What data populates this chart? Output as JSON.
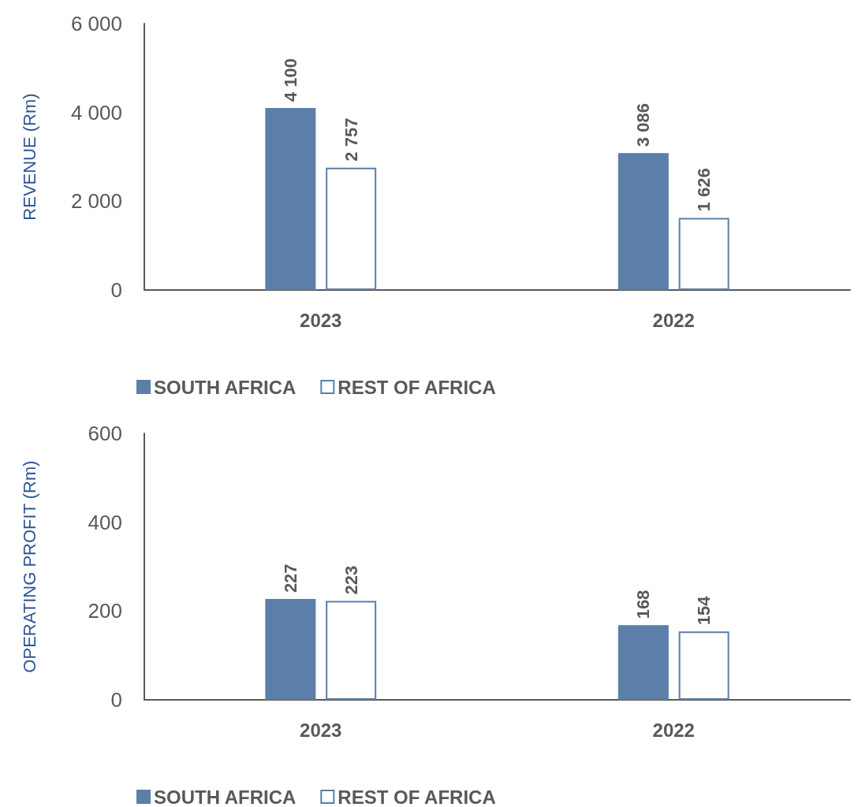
{
  "chart_data": [
    {
      "type": "bar",
      "ylabel": "REVENUE (Rm)",
      "categories": [
        "2023",
        "2022"
      ],
      "ylim": [
        0,
        6000
      ],
      "yticks": [
        0,
        {
          "value": 2000,
          "label": "2 000"
        },
        {
          "value": 4000,
          "label": "4 000"
        },
        {
          "value": 6000,
          "label": "6 000"
        }
      ],
      "grid": false,
      "legend": "bottom left",
      "series": [
        {
          "name": "SOUTH AFRICA",
          "color": "#5b7fa8",
          "values": [
            4100,
            3086
          ],
          "value_labels": [
            "4 100",
            "3 086"
          ]
        },
        {
          "name": "REST OF AFRICA",
          "color": "#ffffff",
          "values": [
            2757,
            1626
          ],
          "value_labels": [
            "2 757",
            "1 626"
          ]
        }
      ]
    },
    {
      "type": "bar",
      "ylabel": "OPERATING PROFIT (Rm)",
      "categories": [
        "2023",
        "2022"
      ],
      "ylim": [
        0,
        600
      ],
      "yticks": [
        0,
        200,
        400,
        600
      ],
      "grid": false,
      "legend": "bottom left",
      "series": [
        {
          "name": "SOUTH AFRICA",
          "color": "#5b7fa8",
          "values": [
            227,
            168
          ],
          "value_labels": [
            "227",
            "168"
          ]
        },
        {
          "name": "REST OF AFRICA",
          "color": "#ffffff",
          "values": [
            223,
            154
          ],
          "value_labels": [
            "223",
            "154"
          ]
        }
      ]
    }
  ]
}
